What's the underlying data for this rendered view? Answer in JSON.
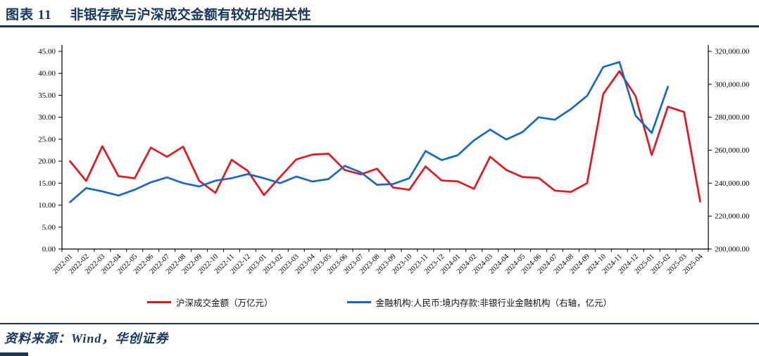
{
  "header": {
    "figure_label": "图表 11",
    "title": "非银存款与沪深成交金额有较好的相关性"
  },
  "source": {
    "text": "资料来源：Wind，华创证券"
  },
  "colors": {
    "accent_navy": "#17365D",
    "red_series": "#E2171E",
    "blue_series": "#1668C4"
  },
  "chart_data": {
    "type": "line",
    "grid": false,
    "legend_position": "bottom",
    "categories": [
      "2022-01",
      "2022-02",
      "2022-03",
      "2022-04",
      "2022-05",
      "2022-06",
      "2022-07",
      "2022-08",
      "2022-09",
      "2022-10",
      "2022-11",
      "2022-12",
      "2023-01",
      "2023-02",
      "2023-03",
      "2023-04",
      "2023-05",
      "2023-06",
      "2023-07",
      "2023-08",
      "2023-09",
      "2023-10",
      "2023-11",
      "2023-12",
      "2024-01",
      "2024-02",
      "2024-03",
      "2024-04",
      "2024-05",
      "2024-06",
      "2024-07",
      "2024-08",
      "2024-09",
      "2024-10",
      "2024-11",
      "2024-12",
      "2025-01",
      "2025-02",
      "2025-03",
      "2025-04"
    ],
    "left_axis": {
      "min": 0,
      "max": 45,
      "step": 5
    },
    "right_axis": {
      "min": 200000,
      "max": 320000,
      "step": 20000
    },
    "series": [
      {
        "name": "沪深成交金额（万亿元）",
        "axis": "left",
        "color": "#E2171E",
        "values": [
          20.0,
          15.5,
          23.4,
          16.6,
          16.1,
          23.1,
          21.0,
          23.3,
          15.5,
          12.8,
          20.3,
          17.8,
          12.3,
          16.4,
          20.4,
          21.5,
          21.7,
          18.0,
          17.0,
          18.3,
          14.0,
          13.5,
          18.8,
          15.6,
          15.4,
          13.7,
          21.0,
          18.0,
          16.4,
          16.2,
          13.3,
          13.0,
          15.0,
          35.3,
          40.5,
          34.8,
          21.4,
          32.4,
          31.2,
          10.8
        ]
      },
      {
        "name": "金融机构:人民币:境内存款:非银行业金融机构（右轴，亿元）",
        "axis": "right",
        "color": "#1668C4",
        "values": [
          228500,
          237000,
          235000,
          232500,
          236000,
          240500,
          243500,
          240000,
          238000,
          241500,
          243000,
          245500,
          243000,
          240000,
          244000,
          241000,
          242500,
          250500,
          246500,
          239000,
          239500,
          243000,
          259500,
          254000,
          257000,
          266000,
          272500,
          266500,
          271000,
          280000,
          278500,
          285000,
          293000,
          310500,
          313500,
          281000,
          270500,
          298500,
          null,
          null
        ]
      }
    ]
  }
}
